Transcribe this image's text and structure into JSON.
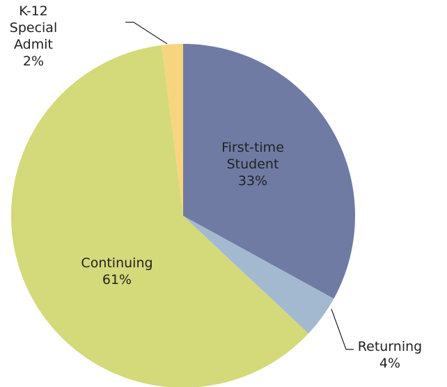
{
  "chart_data": {
    "type": "pie",
    "categories": [
      "First-time\nStudent",
      "Returning",
      "Continuing",
      "K-12\nSpecial\nAdmit"
    ],
    "values": [
      33,
      4,
      61,
      2
    ],
    "value_labels": [
      "33%",
      "4%",
      "61%",
      "2%"
    ],
    "colors": [
      "#6f7ba3",
      "#a3b9cf",
      "#d4d97a",
      "#f7d57e"
    ]
  }
}
